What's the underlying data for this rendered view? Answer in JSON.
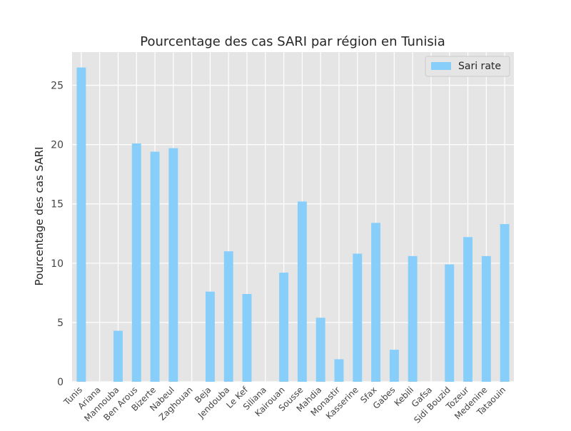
{
  "chart_data": {
    "type": "bar",
    "title": "Pourcentage des cas SARI par région en Tunisia",
    "xlabel": "",
    "ylabel": "Pourcentage des cas SARI",
    "ylim": [
      0,
      27.8
    ],
    "yticks": [
      0,
      5,
      10,
      15,
      20,
      25
    ],
    "grid": true,
    "legend_position": "top-right",
    "colors": {
      "bar": "#87cefa",
      "plot_bg": "#e5e5e5",
      "grid": "#ffffff",
      "text": "#262626",
      "tick_text": "#444444"
    },
    "categories": [
      "Tunis",
      "Ariana",
      "Mannouba",
      "Ben Arous",
      "Bizerte",
      "Nabeul",
      "Zaghouan",
      "Beja",
      "Jendouba",
      "Le Kef",
      "Siliana",
      "Kairouan",
      "Sousse",
      "Mahdia",
      "Monastir",
      "Kasserine",
      "Sfax",
      "Gabes",
      "Kebili",
      "Gafsa",
      "Sidi Bouzid",
      "Tozeur",
      "Medenine",
      "Tataouin"
    ],
    "series": [
      {
        "name": "Sari rate",
        "values": [
          26.5,
          0,
          4.3,
          20.1,
          19.4,
          19.7,
          0,
          7.6,
          11.0,
          7.4,
          0,
          9.2,
          15.2,
          5.4,
          1.9,
          10.8,
          13.4,
          2.7,
          10.6,
          0,
          9.9,
          12.2,
          10.6,
          13.3
        ]
      }
    ]
  }
}
